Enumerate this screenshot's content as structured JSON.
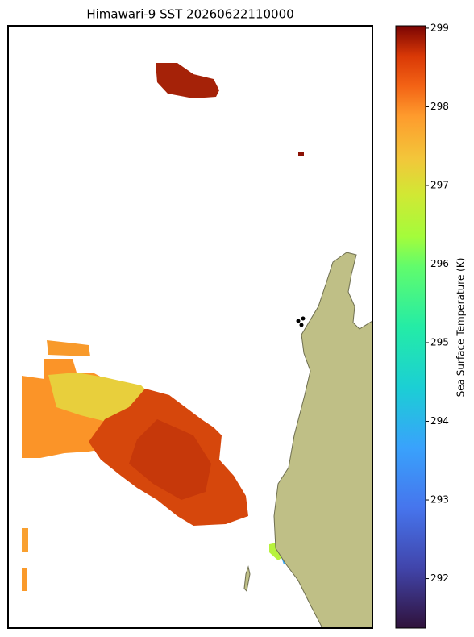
{
  "chart_data": {
    "type": "map",
    "title": "Himawari-9 SST 20260622110000",
    "colorbar": {
      "label": "Sea Surface Temperature (K)",
      "lim": [
        291.37,
        299.03
      ],
      "ticks": [
        292,
        293,
        294,
        295,
        296,
        297,
        298,
        299
      ]
    }
  }
}
